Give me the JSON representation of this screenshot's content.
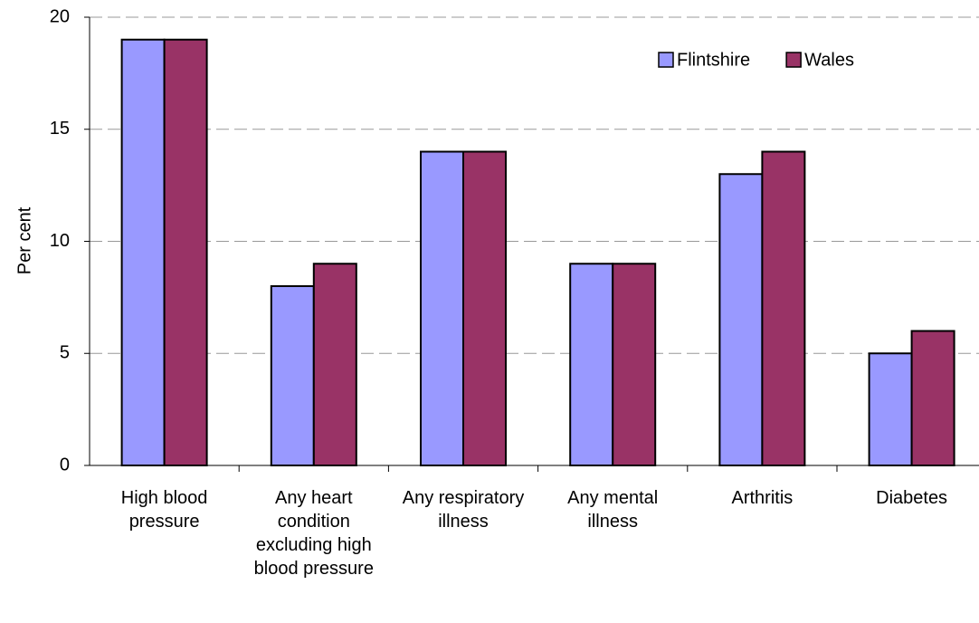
{
  "chart_data": {
    "type": "bar",
    "y_label": "Per cent",
    "categories": [
      "High blood pressure",
      "Any heart condition excluding high blood pressure",
      "Any respiratory illness",
      "Any mental illness",
      "Arthritis",
      "Diabetes"
    ],
    "series": [
      {
        "name": "Flintshire",
        "color": "#9999ff",
        "values": [
          19,
          8,
          14,
          9,
          13,
          5
        ]
      },
      {
        "name": "Wales",
        "color": "#993366",
        "values": [
          19,
          9,
          14,
          9,
          14,
          6
        ]
      }
    ],
    "ylim": [
      0,
      20
    ],
    "yticks": [
      0,
      5,
      10,
      15,
      20
    ],
    "grid": true,
    "legend": "top-right"
  }
}
